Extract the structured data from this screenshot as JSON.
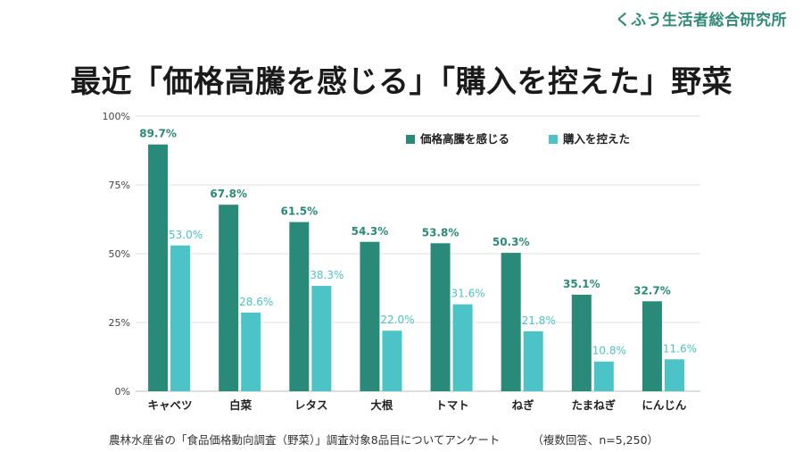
{
  "brand": "くふう生活者総合研究所",
  "title": "最近「価格高騰を感じる」「購入を控えた」野菜",
  "footnote": {
    "source": "農林水産省の「食品価格動向調査（野菜）」調査対象8品目についてアンケート",
    "sample": "（複数回答、n=5,250）"
  },
  "colors": {
    "series1": "#2a8a7a",
    "series2": "#4cc3c7",
    "label1": "#2a8a7a",
    "label2": "#4cc3c7",
    "grid": "#e0e0e0",
    "brand": "#2f8a78"
  },
  "chart_data": {
    "type": "bar",
    "title": "最近「価格高騰を感じる」「購入を控えた」野菜",
    "xlabel": "",
    "ylabel": "",
    "ylim": [
      0,
      100
    ],
    "yticks": [
      "0%",
      "25%",
      "50%",
      "75%",
      "100%"
    ],
    "grid": true,
    "legend_position": "top-right",
    "categories": [
      "キャベツ",
      "白菜",
      "レタス",
      "大根",
      "トマト",
      "ねぎ",
      "たまねぎ",
      "にんじん"
    ],
    "series": [
      {
        "name": "価格高騰を感じる",
        "values": [
          89.7,
          67.8,
          61.5,
          54.3,
          53.8,
          50.3,
          35.1,
          32.7
        ],
        "labels": [
          "89.7%",
          "67.8%",
          "61.5%",
          "54.3%",
          "53.8%",
          "50.3%",
          "35.1%",
          "32.7%"
        ]
      },
      {
        "name": "購入を控えた",
        "values": [
          53.0,
          28.6,
          38.3,
          22.0,
          31.6,
          21.8,
          10.8,
          11.6
        ],
        "labels": [
          "53.0%",
          "28.6%",
          "38.3%",
          "22.0%",
          "31.6%",
          "21.8%",
          "10.8%",
          "11.6%"
        ]
      }
    ]
  }
}
